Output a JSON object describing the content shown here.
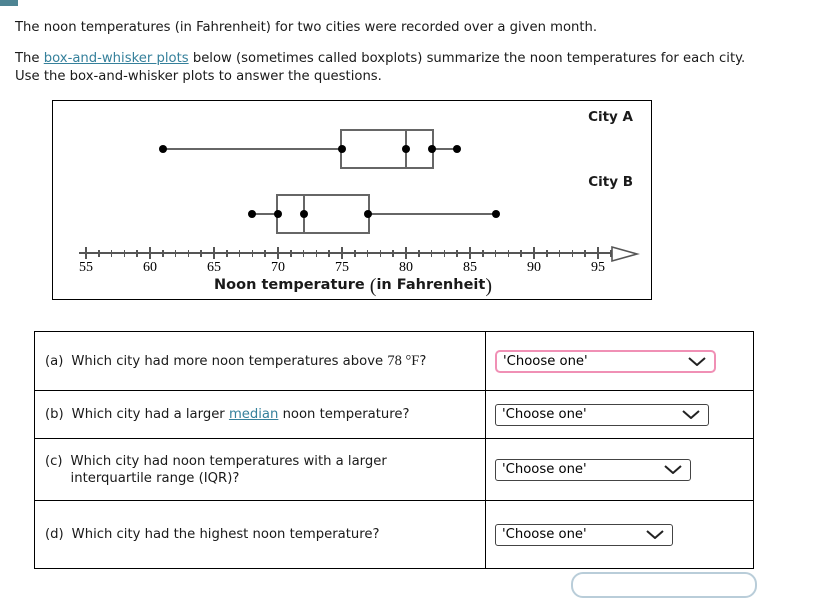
{
  "intro": {
    "line1": "The noon temperatures (in Fahrenheit) for two cities were recorded over a given month.",
    "line2_pre": "The ",
    "line2_link": "box-and-whisker plots",
    "line2_post": " below (sometimes called boxplots) summarize the noon temperatures for each city.",
    "line3": "Use the box-and-whisker plots to answer the questions."
  },
  "chart_data": {
    "type": "boxplot",
    "title": "",
    "xlabel": "Noon temperature (in Fahrenheit)",
    "axis": {
      "min": 55,
      "max": 95,
      "major_step": 5,
      "minor_step": 1,
      "tick_labels": [
        "55",
        "60",
        "65",
        "70",
        "75",
        "80",
        "85",
        "90",
        "95"
      ],
      "arrow": "right"
    },
    "series": [
      {
        "name": "City A",
        "min": 61,
        "q1": 75,
        "median": 80,
        "q3": 82,
        "max": 84
      },
      {
        "name": "City B",
        "min": 68,
        "q1": 70,
        "median": 72,
        "q3": 77,
        "max": 87
      }
    ]
  },
  "questions": [
    {
      "label": "(a)",
      "text_pre": "Which city had more noon temperatures above ",
      "math_value": "78 °F",
      "text_post": "?",
      "dropdown_label": "'Choose one'",
      "focused": true
    },
    {
      "label": "(b)",
      "text_pre": "Which city had a larger ",
      "link_text": "median",
      "text_post": " noon temperature?",
      "dropdown_label": "'Choose one'",
      "focused": false
    },
    {
      "label": "(c)",
      "text_line1": "Which city had noon temperatures with a larger",
      "text_line2": "interquartile range (IQR)?",
      "dropdown_label": "'Choose one'",
      "focused": false
    },
    {
      "label": "(d)",
      "text": "Which city had the highest noon temperature?",
      "dropdown_label": "'Choose one'",
      "focused": false
    }
  ],
  "colors": {
    "link": "#35809b",
    "focus_ring": "#f090b5",
    "accent_corner": "#4e8493",
    "plot_line": "#666666",
    "dot": "#000000",
    "axis": "#555555"
  }
}
